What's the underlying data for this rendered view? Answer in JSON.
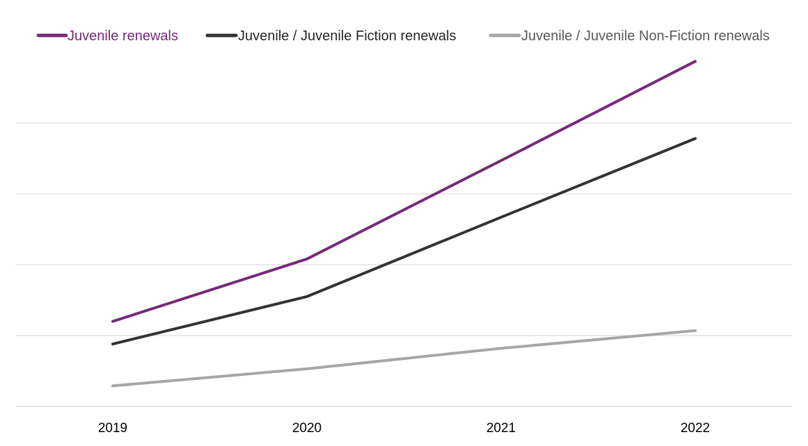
{
  "chart_data": {
    "type": "line",
    "categories": [
      "2019",
      "2020",
      "2021",
      "2022"
    ],
    "series": [
      {
        "name": "Juvenile renewals",
        "color": "#762a78",
        "values": [
          1.2,
          2.08,
          3.47,
          4.87
        ]
      },
      {
        "name": "Juvenile / Juvenile Fiction renewals",
        "color": "#333333",
        "values": [
          0.88,
          1.55,
          2.67,
          3.78
        ]
      },
      {
        "name": "Juvenile / Juvenile Non-Fiction renewals",
        "color": "#a6a6a6",
        "values": [
          0.29,
          0.53,
          0.82,
          1.07
        ]
      }
    ],
    "title": "",
    "xlabel": "",
    "ylabel": "",
    "ylim": [
      0,
      5
    ],
    "y_gridlines": [
      0,
      1,
      2,
      3,
      4,
      5
    ],
    "y_tick_labels_shown": false,
    "grid": true,
    "legend_position": "top"
  }
}
